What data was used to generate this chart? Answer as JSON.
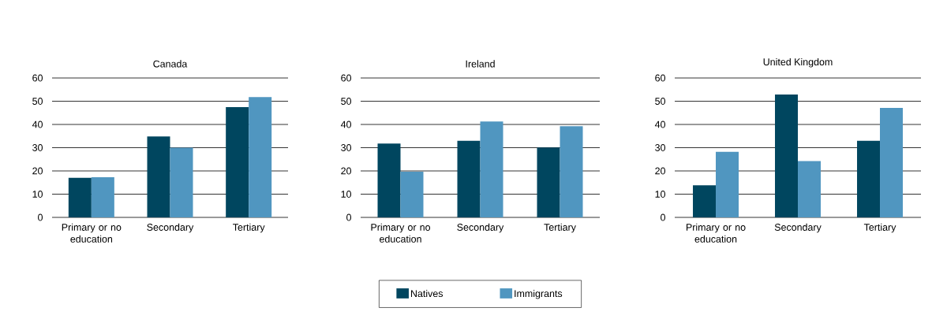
{
  "chart_data": [
    {
      "type": "bar",
      "title": "Canada",
      "categories": [
        "Primary or no education",
        "Secondary",
        "Tertiary"
      ],
      "series": [
        {
          "color": "#00465f",
          "values": [
            17.0,
            34.8,
            47.5
          ]
        },
        {
          "color": "#5096c0",
          "values": [
            17.3,
            30.0,
            51.8
          ]
        }
      ],
      "ylim": [
        0,
        60
      ],
      "yticks": [
        0,
        10,
        20,
        30,
        40,
        50,
        60
      ],
      "grid": "y"
    },
    {
      "type": "bar",
      "title": "Ireland",
      "categories": [
        "Primary or no education",
        "Secondary",
        "Tertiary"
      ],
      "series": [
        {
          "name": "Natives",
          "color": "#00465f",
          "values": [
            31.8,
            33.0,
            30.1
          ]
        },
        {
          "name": "Immigrants",
          "color": "#5096c0",
          "values": [
            19.7,
            41.3,
            39.2
          ]
        }
      ],
      "ylim": [
        0,
        60
      ],
      "yticks": [
        0,
        10,
        20,
        30,
        40,
        50,
        60
      ],
      "grid": "y",
      "legend": "bottom"
    },
    {
      "type": "bar",
      "title": "United Kingdom",
      "categories": [
        "Primary or no education",
        "Secondary",
        "Tertiary"
      ],
      "series": [
        {
          "color": "#00465f",
          "values": [
            13.8,
            52.9,
            33.0
          ]
        },
        {
          "color": "#5096c0",
          "values": [
            28.2,
            24.2,
            47.1
          ]
        }
      ],
      "ylim": [
        0,
        60
      ],
      "yticks": [
        0,
        10,
        20,
        30,
        40,
        50,
        60
      ],
      "grid": "y"
    }
  ]
}
